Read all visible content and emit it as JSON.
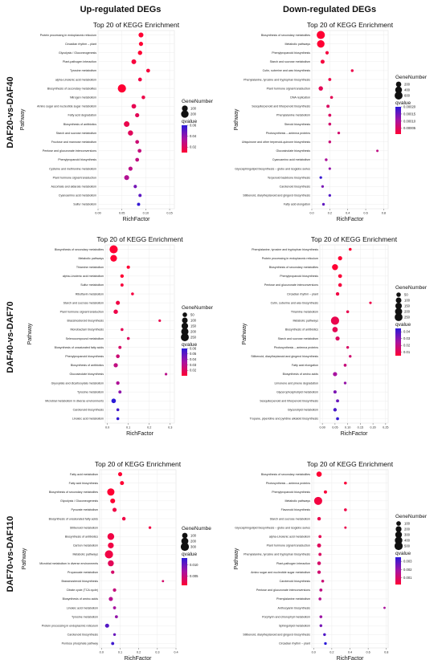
{
  "figure": {
    "col_headers": [
      "Up-regulated DEGs",
      "Down-regulated DEGs"
    ],
    "row_headers": [
      "DAF20-vs-DAF40",
      "DAF40-vs-DAF70",
      "DAF70-vs-DAF110"
    ],
    "colors": {
      "low_qvalue": "#ff0033",
      "high_qvalue": "#2a1ad8",
      "grid": "#ececec"
    }
  },
  "chart_data": [
    {
      "id": "up_1",
      "type": "scatter",
      "title": "Top 20 of KEGG Enrichment",
      "xlabel": "RichFactor",
      "ylabel": "Pathway",
      "xticks": [
        "0.00",
        "0.05",
        "0.10",
        "0.15"
      ],
      "xlim": [
        0,
        0.16
      ],
      "size_legend": {
        "title": "GeneNumber",
        "values": [
          100,
          200
        ],
        "labels": [
          "100",
          "200"
        ]
      },
      "color_legend": {
        "title": "qvalue",
        "min": 0.01,
        "max": 0.06,
        "ticks": [
          0.06,
          0.04,
          0.02
        ],
        "labels": [
          "0.06",
          "0.04",
          "0.02"
        ]
      },
      "grid": true,
      "legend_position": "right",
      "pathways": [
        "Protein processing in endoplasmic reticulum",
        "Circadian rhythm – plant",
        "Glycolysis / Gluconeogenesis",
        "Plant-pathogen interaction",
        "Tyrosine metabolism",
        "alpha-Linolenic acid metabolism",
        "Biosynthesis of secondary metabolites",
        "Nitrogen metabolism",
        "Amino sugar and nucleotide sugar metabolism",
        "Fatty acid degradation",
        "Biosynthesis of antibiotics",
        "Starch and sucrose metabolism",
        "Fructose and mannose metabolism",
        "Pentose and glucuronate interconversions",
        "Phenylpropanoid biosynthesis",
        "Cysteine and methionine metabolism",
        "Plant hormone signal transduction",
        "Ascorbate and aldarate metabolism",
        "Cyanoamino acid metabolism",
        "Sulfur metabolism"
      ],
      "richfactor": [
        0.09,
        0.09,
        0.088,
        0.075,
        0.105,
        0.088,
        0.05,
        0.095,
        0.075,
        0.082,
        0.06,
        0.068,
        0.082,
        0.087,
        0.082,
        0.068,
        0.06,
        0.078,
        0.088,
        0.085
      ],
      "gene_number": [
        60,
        35,
        40,
        55,
        25,
        25,
        250,
        20,
        50,
        35,
        90,
        70,
        25,
        25,
        25,
        35,
        60,
        15,
        12,
        12
      ],
      "qvalue": [
        0.006,
        0.008,
        0.009,
        0.012,
        0.012,
        0.014,
        0.006,
        0.015,
        0.017,
        0.018,
        0.016,
        0.019,
        0.025,
        0.027,
        0.028,
        0.029,
        0.032,
        0.045,
        0.05,
        0.058
      ]
    },
    {
      "id": "down_1",
      "type": "scatter",
      "title": "Top 20 of KEGG Enrichment",
      "xlabel": "RichFactor",
      "ylabel": "Pathway",
      "xticks": [
        "0.0",
        "0.2",
        "0.4",
        "0.6",
        "0.8"
      ],
      "xlim": [
        0,
        0.85
      ],
      "size_legend": {
        "title": "GeneNumber",
        "values": [
          200,
          400,
          600
        ],
        "labels": [
          "200",
          "400",
          "600"
        ]
      },
      "color_legend": {
        "title": "qvalue",
        "min": 1e-05,
        "max": 0.0002,
        "ticks": [
          0.0002,
          0.00015,
          0.0001,
          5e-05
        ],
        "labels": [
          "0.00020",
          "0.00015",
          "0.00010",
          "0.00005"
        ]
      },
      "grid": true,
      "legend_position": "right",
      "pathways": [
        "Biosynthesis of secondary metabolites",
        "Metabolic pathways",
        "Phenylpropanoid biosynthesis",
        "Starch and sucrose metabolism",
        "Cutin, suberine and wax biosynthesis",
        "Phenylalanine, tyrosine and tryptophan biosynthesis",
        "Plant hormone signal transduction",
        "DNA replication",
        "Sesquiterpenoid and triterpenoid biosynthesis",
        "Phenylalanine metabolism",
        "Steroid biosynthesis",
        "Photosynthesis – antenna proteins",
        "Ubiquinone and other terpenoid-quinone biosynthesis",
        "Glucosinolate biosynthesis",
        "Cyanoamino acid metabolism",
        "Glycosphingolipid biosynthesis – globo and isoglobo series",
        "Terpenoid backbone biosynthesis",
        "Carotenoid biosynthesis",
        "Stilbenoid, diarylheptanoid and gingerol biosynthesis",
        "Fatty acid elongation"
      ],
      "richfactor": [
        0.1,
        0.1,
        0.17,
        0.12,
        0.45,
        0.2,
        0.1,
        0.22,
        0.18,
        0.2,
        0.2,
        0.3,
        0.2,
        0.73,
        0.16,
        0.2,
        0.1,
        0.12,
        0.2,
        0.13
      ],
      "gene_number": [
        650,
        520,
        40,
        80,
        15,
        25,
        110,
        20,
        30,
        25,
        20,
        12,
        15,
        6,
        15,
        10,
        12,
        12,
        12,
        12
      ],
      "qvalue": [
        1e-05,
        1e-05,
        2e-05,
        2e-05,
        3e-05,
        3e-05,
        4e-05,
        4e-05,
        5e-05,
        5e-05,
        6e-05,
        6e-05,
        7e-05,
        8e-05,
        0.0001,
        0.00012,
        0.00019,
        0.00014,
        0.00017,
        0.00016
      ]
    },
    {
      "id": "up_2",
      "type": "scatter",
      "title": "Top 20 of KEGG Enrichment",
      "xlabel": "RichFactor",
      "ylabel": "Pathway",
      "xticks": [
        "0.0",
        "0.1",
        "0.2",
        "0.3"
      ],
      "xlim": [
        -0.01,
        0.32
      ],
      "size_legend": {
        "title": "GeneNumber",
        "values": [
          50,
          100,
          150,
          200,
          250
        ],
        "labels": [
          "50",
          "100",
          "150",
          "200",
          "250"
        ]
      },
      "color_legend": {
        "title": "qvalue",
        "min": 0.01,
        "max": 0.06,
        "ticks": [
          0.06,
          0.05,
          0.04,
          0.03,
          0.02
        ],
        "labels": [
          "0.06",
          "0.05",
          "0.04",
          "0.03",
          "0.02"
        ]
      },
      "grid": true,
      "legend_position": "right",
      "pathways": [
        "Biosynthesis of secondary metabolites",
        "Metabolic pathways",
        "Thiamine metabolism",
        "alpha-Linolenic acid metabolism",
        "Sulfur metabolism",
        "Riboflavin metabolism",
        "Starch and sucrose metabolism",
        "Plant hormone signal transduction",
        "Brassinosteroid biosynthesis",
        "Monobactam biosynthesis",
        "Selenocompound metabolism",
        "Biosynthesis of unsaturated fatty acids",
        "Phenylpropanoid biosynthesis",
        "Biosynthesis of antibiotics",
        "Glucosinolate biosynthesis",
        "Glyoxylate and dicarboxylate metabolism",
        "Tyrosine metabolism",
        "Microbial metabolism in diverse environments",
        "Carotenoid biosynthesis",
        "Linoleic acid metabolism"
      ],
      "richfactor": [
        0.03,
        0.03,
        0.1,
        0.07,
        0.07,
        0.12,
        0.05,
        0.04,
        0.25,
        0.07,
        0.1,
        0.06,
        0.05,
        0.04,
        0.28,
        0.05,
        0.06,
        0.03,
        0.05,
        0.05
      ],
      "gene_number": [
        270,
        160,
        15,
        20,
        12,
        8,
        35,
        45,
        4,
        8,
        8,
        12,
        25,
        40,
        4,
        20,
        12,
        50,
        8,
        8
      ],
      "qvalue": [
        0.005,
        0.006,
        0.008,
        0.01,
        0.012,
        0.013,
        0.014,
        0.015,
        0.016,
        0.018,
        0.02,
        0.022,
        0.025,
        0.028,
        0.03,
        0.033,
        0.04,
        0.06,
        0.055,
        0.058
      ]
    },
    {
      "id": "down_2",
      "type": "scatter",
      "title": "Top 20 of KEGG Enrichment",
      "xlabel": "RichFactor",
      "ylabel": "Pathway",
      "xticks": [
        "0.00",
        "0.05",
        "0.10",
        "0.15",
        "0.20",
        "0.25"
      ],
      "xlim": [
        -0.01,
        0.26
      ],
      "size_legend": {
        "title": "GeneNumber",
        "values": [
          50,
          100,
          150,
          200,
          250
        ],
        "labels": [
          "50",
          "100",
          "150",
          "200",
          "250"
        ]
      },
      "color_legend": {
        "title": "qvalue",
        "min": 0.005,
        "max": 0.045,
        "ticks": [
          0.04,
          0.03,
          0.02,
          0.01
        ],
        "labels": [
          "0.04",
          "0.03",
          "0.02",
          "0.01"
        ]
      },
      "grid": true,
      "legend_position": "right",
      "pathways": [
        "Phenylalanine, tyrosine and tryptophan biosynthesis",
        "Protein processing in endoplasmic reticulum",
        "Biosynthesis of secondary metabolites",
        "Phenylpropanoid biosynthesis",
        "Pentose and glucuronate interconversions",
        "Circadian rhythm – plant",
        "Cutin, suberine and wax biosynthesis",
        "Thiamine metabolism",
        "Metabolic pathways",
        "Biosynthesis of antibiotics",
        "Starch and sucrose metabolism",
        "Photosynthesis – antenna proteins",
        "Stilbenoid, diarylheptanoid and gingerol biosynthesis",
        "Fatty acid elongation",
        "Biosynthesis of amino acids",
        "Limonene and pinene degradation",
        "Glycerophospholipid metabolism",
        "Sesquiterpenoid and triterpenoid biosynthesis",
        "Glycerolipid metabolism",
        "Tropane, piperidine and pyridine alkaloid biosynthesis"
      ],
      "richfactor": [
        0.11,
        0.07,
        0.05,
        0.07,
        0.07,
        0.06,
        0.19,
        0.1,
        0.05,
        0.05,
        0.06,
        0.1,
        0.11,
        0.09,
        0.05,
        0.09,
        0.05,
        0.06,
        0.05,
        0.06
      ],
      "gene_number": [
        8,
        40,
        120,
        30,
        25,
        20,
        4,
        8,
        280,
        90,
        40,
        6,
        6,
        10,
        40,
        6,
        15,
        12,
        20,
        10
      ],
      "qvalue": [
        0.004,
        0.005,
        0.005,
        0.006,
        0.007,
        0.008,
        0.009,
        0.01,
        0.01,
        0.011,
        0.013,
        0.014,
        0.016,
        0.018,
        0.025,
        0.028,
        0.032,
        0.035,
        0.04,
        0.043
      ]
    },
    {
      "id": "up_3",
      "type": "scatter",
      "title": "Top 20 of KEGG Enrichment",
      "xlabel": "RichFactor",
      "ylabel": "Pathway",
      "xticks": [
        "0.0",
        "0.1",
        "0.2",
        "0.3",
        "0.4"
      ],
      "xlim": [
        -0.01,
        0.4
      ],
      "size_legend": {
        "title": "GeneNumbe",
        "values": [
          100,
          200,
          300
        ],
        "labels": [
          "100",
          "200",
          "300"
        ]
      },
      "color_legend": {
        "title": "qvalue",
        "min": 0.001,
        "max": 0.013,
        "ticks": [
          0.01,
          0.005
        ],
        "labels": [
          "0.010",
          "0.005"
        ]
      },
      "grid": true,
      "legend_position": "right",
      "pathways": [
        "Fatty acid metabolism",
        "Fatty acid biosynthesis",
        "Biosynthesis of secondary metabolites",
        "Glycolysis / Gluconeogenesis",
        "Pyruvate metabolism",
        "Biosynthesis of unsaturated fatty acids",
        "Stilbenoid metabolism",
        "Biosynthesis of antibiotics",
        "Carbon metabolism",
        "Metabolic pathways",
        "Microbial metabolism in diverse environments",
        "Propanoate metabolism",
        "Brassinosteroid biosynthesis",
        "Citrate cycle (TCA cycle)",
        "Biosynthesis of amino acids",
        "Linoleic acid metabolism",
        "Tyrosine metabolism",
        "Protein processing in endoplasmic reticulum",
        "Carotenoid biosynthesis",
        "Pentose phosphate pathway"
      ],
      "richfactor": [
        0.1,
        0.11,
        0.05,
        0.06,
        0.07,
        0.12,
        0.26,
        0.05,
        0.05,
        0.04,
        0.05,
        0.06,
        0.33,
        0.07,
        0.05,
        0.07,
        0.08,
        0.03,
        0.07,
        0.06
      ],
      "gene_number": [
        40,
        35,
        220,
        70,
        40,
        25,
        6,
        180,
        120,
        300,
        130,
        20,
        2,
        20,
        40,
        12,
        12,
        40,
        6,
        12
      ],
      "qvalue": [
        0.001,
        0.001,
        0.001,
        0.001,
        0.002,
        0.002,
        0.002,
        0.002,
        0.002,
        0.002,
        0.003,
        0.004,
        0.004,
        0.005,
        0.006,
        0.007,
        0.008,
        0.011,
        0.01,
        0.012
      ]
    },
    {
      "id": "down_3",
      "type": "scatter",
      "title": "Top 20 of KEGG Enrichment",
      "xlabel": "RichFactor",
      "ylabel": "Pathway",
      "xticks": [
        "0.0",
        "0.2",
        "0.4",
        "0.6",
        "0.8"
      ],
      "xlim": [
        -0.02,
        0.82
      ],
      "size_legend": {
        "title": "GeneNumber",
        "values": [
          100,
          200,
          300,
          400,
          500
        ],
        "labels": [
          "100",
          "200",
          "300",
          "400",
          "500"
        ]
      },
      "color_legend": {
        "title": "qvalue",
        "min": 0.0002,
        "max": 0.0035,
        "ticks": [
          0.003,
          0.002,
          0.001
        ],
        "labels": [
          "0.003",
          "0.002",
          "0.001"
        ]
      },
      "grid": true,
      "legend_position": "right",
      "pathways": [
        "Biosynthesis of secondary metabolites",
        "Photosynthesis – antenna proteins",
        "Phenylpropanoid biosynthesis",
        "Metabolic pathways",
        "Flavonoid biosynthesis",
        "Starch and sucrose metabolism",
        "Glycosphingolipid biosynthesis – globo and isoglobo series",
        "alpha-Linolenic acid metabolism",
        "Plant hormone signal transduction",
        "Phenylalanine, tyrosine and tryptophan biosynthesis",
        "Plant-pathogen interaction",
        "Amino sugar and nucleotide sugar metabolism",
        "Carotenoid biosynthesis",
        "Pentose and glucuronate interconversions",
        "Phenylalanine metabolism",
        "Anthocyanin biosynthesis",
        "Porphyrin and chlorophyll metabolism",
        "Sphingolipid metabolism",
        "Stilbenoid, diarylheptanoid and gingerol biosynthesis",
        "Circadian rhythm – plant"
      ],
      "richfactor": [
        0.06,
        0.35,
        0.13,
        0.05,
        0.35,
        0.06,
        0.35,
        0.07,
        0.06,
        0.07,
        0.06,
        0.06,
        0.1,
        0.08,
        0.07,
        0.78,
        0.08,
        0.08,
        0.12,
        0.13
      ],
      "gene_number": [
        150,
        15,
        25,
        480,
        15,
        40,
        5,
        20,
        60,
        20,
        45,
        35,
        15,
        20,
        15,
        3,
        15,
        12,
        12,
        10
      ],
      "qvalue": [
        0.0002,
        0.0003,
        0.0003,
        0.0004,
        0.0005,
        0.0006,
        0.0006,
        0.0007,
        0.0008,
        0.0009,
        0.001,
        0.0011,
        0.0012,
        0.0014,
        0.0016,
        0.0018,
        0.002,
        0.0025,
        0.003,
        0.0035
      ]
    }
  ]
}
